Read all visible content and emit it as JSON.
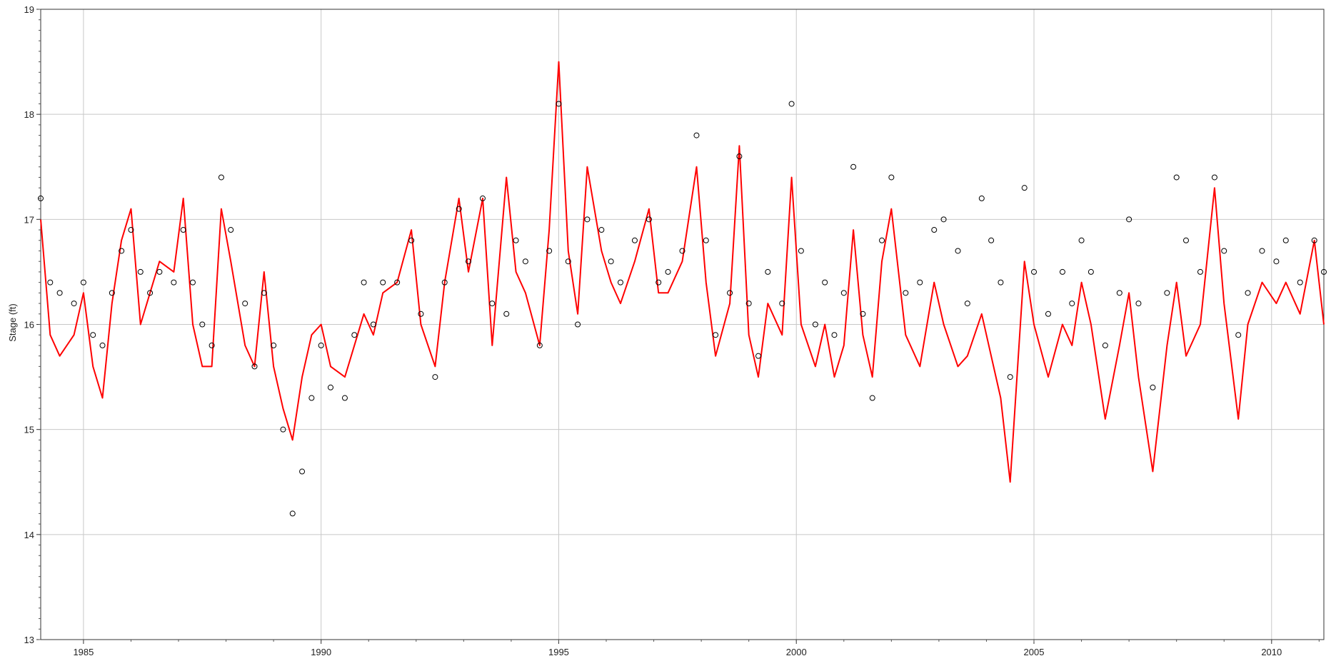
{
  "chart_data": {
    "type": "scatter",
    "title": "",
    "xlabel": "",
    "ylabel": "Stage (ft)",
    "xlim": [
      1984.1,
      2011.1
    ],
    "ylim": [
      13,
      19
    ],
    "x_ticks": [
      1985,
      1990,
      1995,
      2000,
      2005,
      2010
    ],
    "x_tick_labels": [
      "1985",
      "1990",
      "1995",
      "2000",
      "2005",
      "2010"
    ],
    "y_ticks": [
      13,
      14,
      15,
      16,
      17,
      18,
      19
    ],
    "y_tick_labels": [
      "13",
      "14",
      "15",
      "16",
      "17",
      "18",
      "19"
    ],
    "grid": true,
    "legend": "none",
    "series": [
      {
        "style": "open-circle markers",
        "color": "#000000",
        "x": [
          1984.1,
          1984.3,
          1984.5,
          1984.8,
          1985.0,
          1985.2,
          1985.4,
          1985.6,
          1985.8,
          1986.0,
          1986.2,
          1986.4,
          1986.6,
          1986.9,
          1987.1,
          1987.3,
          1987.5,
          1987.7,
          1987.9,
          1988.1,
          1988.4,
          1988.6,
          1988.8,
          1989.0,
          1989.2,
          1989.4,
          1989.6,
          1989.8,
          1990.0,
          1990.2,
          1990.5,
          1990.7,
          1990.9,
          1991.1,
          1991.3,
          1991.6,
          1991.9,
          1992.1,
          1992.4,
          1992.6,
          1992.9,
          1993.1,
          1993.4,
          1993.6,
          1993.9,
          1994.1,
          1994.3,
          1994.6,
          1994.8,
          1995.0,
          1995.2,
          1995.4,
          1995.6,
          1995.9,
          1996.1,
          1996.3,
          1996.6,
          1996.9,
          1997.1,
          1997.3,
          1997.6,
          1997.9,
          1998.1,
          1998.3,
          1998.6,
          1998.8,
          1999.0,
          1999.2,
          1999.4,
          1999.7,
          1999.9,
          2000.1,
          2000.4,
          2000.6,
          2000.8,
          2001.0,
          2001.2,
          2001.4,
          2001.6,
          2001.8,
          2002.0,
          2002.3,
          2002.6,
          2002.9,
          2003.1,
          2003.4,
          2003.6,
          2003.9,
          2004.1,
          2004.3,
          2004.5,
          2004.8,
          2005.0,
          2005.3,
          2005.6,
          2005.8,
          2006.0,
          2006.2,
          2006.5,
          2006.8,
          2007.0,
          2007.2,
          2007.5,
          2007.8,
          2008.0,
          2008.2,
          2008.5,
          2008.8,
          2009.0,
          2009.3,
          2009.5,
          2009.8,
          2010.1,
          2010.3,
          2010.6,
          2010.9,
          2011.1
        ],
        "y": [
          17.2,
          16.4,
          16.3,
          16.2,
          16.4,
          15.9,
          15.8,
          16.3,
          16.7,
          16.9,
          16.5,
          16.3,
          16.5,
          16.4,
          16.9,
          16.4,
          16.0,
          15.8,
          17.4,
          16.9,
          16.2,
          15.6,
          16.3,
          15.8,
          15.0,
          14.2,
          14.6,
          15.3,
          15.8,
          15.4,
          15.3,
          15.9,
          16.4,
          16.0,
          16.4,
          16.4,
          16.8,
          16.1,
          15.5,
          16.4,
          17.1,
          16.6,
          17.2,
          16.2,
          16.1,
          16.8,
          16.6,
          15.8,
          16.7,
          18.1,
          16.6,
          16.0,
          17.0,
          16.9,
          16.6,
          16.4,
          16.8,
          17.0,
          16.4,
          16.5,
          16.7,
          17.8,
          16.8,
          15.9,
          16.3,
          17.6,
          16.2,
          15.7,
          16.5,
          16.2,
          18.1,
          16.7,
          16.0,
          16.4,
          15.9,
          16.3,
          17.5,
          16.1,
          15.3,
          16.8,
          17.4,
          16.3,
          16.4,
          16.9,
          17.0,
          16.7,
          16.2,
          17.2,
          16.8,
          16.4,
          15.5,
          17.3,
          16.5,
          16.1,
          16.5,
          16.2,
          16.8,
          16.5,
          15.8,
          16.3,
          17.0,
          16.2,
          15.4,
          16.3,
          17.4,
          16.8,
          16.5,
          17.4,
          16.7,
          15.9,
          16.3,
          16.7,
          16.6,
          16.8,
          16.4,
          16.8,
          16.5
        ]
      },
      {
        "style": "line",
        "color": "#ff0000",
        "x": [
          1984.1,
          1984.3,
          1984.5,
          1984.8,
          1985.0,
          1985.2,
          1985.4,
          1985.6,
          1985.8,
          1986.0,
          1986.2,
          1986.4,
          1986.6,
          1986.9,
          1987.1,
          1987.3,
          1987.5,
          1987.7,
          1987.9,
          1988.1,
          1988.4,
          1988.6,
          1988.8,
          1989.0,
          1989.2,
          1989.4,
          1989.6,
          1989.8,
          1990.0,
          1990.2,
          1990.5,
          1990.7,
          1990.9,
          1991.1,
          1991.3,
          1991.6,
          1991.9,
          1992.1,
          1992.4,
          1992.6,
          1992.9,
          1993.1,
          1993.4,
          1993.6,
          1993.9,
          1994.1,
          1994.3,
          1994.6,
          1994.8,
          1995.0,
          1995.2,
          1995.4,
          1995.6,
          1995.9,
          1996.1,
          1996.3,
          1996.6,
          1996.9,
          1997.1,
          1997.3,
          1997.6,
          1997.9,
          1998.1,
          1998.3,
          1998.6,
          1998.8,
          1999.0,
          1999.2,
          1999.4,
          1999.7,
          1999.9,
          2000.1,
          2000.4,
          2000.6,
          2000.8,
          2001.0,
          2001.2,
          2001.4,
          2001.6,
          2001.8,
          2002.0,
          2002.3,
          2002.6,
          2002.9,
          2003.1,
          2003.4,
          2003.6,
          2003.9,
          2004.1,
          2004.3,
          2004.5,
          2004.8,
          2005.0,
          2005.3,
          2005.6,
          2005.8,
          2006.0,
          2006.2,
          2006.5,
          2006.8,
          2007.0,
          2007.2,
          2007.5,
          2007.8,
          2008.0,
          2008.2,
          2008.5,
          2008.8,
          2009.0,
          2009.3,
          2009.5,
          2009.8,
          2010.1,
          2010.3,
          2010.6,
          2010.9,
          2011.1
        ],
        "y": [
          17.0,
          15.9,
          15.7,
          15.9,
          16.3,
          15.6,
          15.3,
          16.2,
          16.8,
          17.1,
          16.0,
          16.3,
          16.6,
          16.5,
          17.2,
          16.0,
          15.6,
          15.6,
          17.1,
          16.6,
          15.8,
          15.6,
          16.5,
          15.6,
          15.2,
          14.9,
          15.5,
          15.9,
          16.0,
          15.6,
          15.5,
          15.8,
          16.1,
          15.9,
          16.3,
          16.4,
          16.9,
          16.0,
          15.6,
          16.4,
          17.2,
          16.5,
          17.2,
          15.8,
          17.4,
          16.5,
          16.3,
          15.8,
          16.9,
          18.5,
          16.7,
          16.1,
          17.5,
          16.7,
          16.4,
          16.2,
          16.6,
          17.1,
          16.3,
          16.3,
          16.6,
          17.5,
          16.4,
          15.7,
          16.2,
          17.7,
          15.9,
          15.5,
          16.2,
          15.9,
          17.4,
          16.0,
          15.6,
          16.0,
          15.5,
          15.8,
          16.9,
          15.9,
          15.5,
          16.6,
          17.1,
          15.9,
          15.6,
          16.4,
          16.0,
          15.6,
          15.7,
          16.1,
          15.7,
          15.3,
          14.5,
          16.6,
          16.0,
          15.5,
          16.0,
          15.8,
          16.4,
          16.0,
          15.1,
          15.8,
          16.3,
          15.5,
          14.6,
          15.8,
          16.4,
          15.7,
          16.0,
          17.3,
          16.2,
          15.1,
          16.0,
          16.4,
          16.2,
          16.4,
          16.1,
          16.8,
          16.0
        ]
      }
    ]
  }
}
